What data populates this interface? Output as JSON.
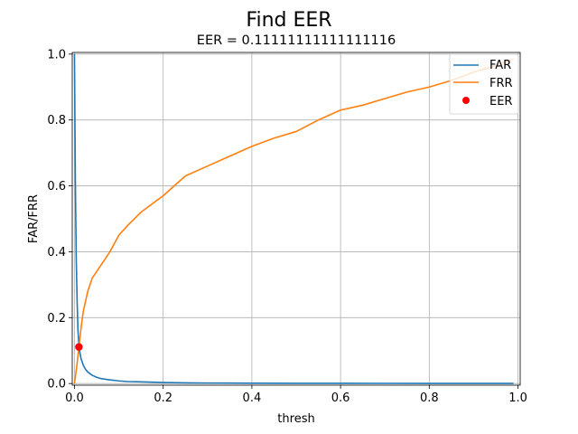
{
  "chart_data": {
    "type": "line",
    "suptitle": "Find EER",
    "title": "EER = 0.11111111111111116",
    "xlabel": "thresh",
    "ylabel": "FAR/FRR",
    "xlim": [
      -0.005,
      1.005
    ],
    "ylim": [
      -0.005,
      1.005
    ],
    "xticks": [
      0.0,
      0.2,
      0.4,
      0.6,
      0.8,
      1.0
    ],
    "xtick_labels": [
      "0.0",
      "0.2",
      "0.4",
      "0.6",
      "0.8",
      "1.0"
    ],
    "yticks": [
      0.0,
      0.2,
      0.4,
      0.6,
      0.8,
      1.0
    ],
    "ytick_labels": [
      "0.0",
      "0.2",
      "0.4",
      "0.6",
      "0.8",
      "1.0"
    ],
    "grid": true,
    "legend_position": "top-right",
    "series": [
      {
        "name": "FAR",
        "color": "#1f77b4",
        "x": [
          0.0,
          0.002,
          0.004,
          0.006,
          0.008,
          0.01,
          0.012,
          0.015,
          0.02,
          0.025,
          0.03,
          0.04,
          0.05,
          0.06,
          0.08,
          0.1,
          0.12,
          0.15,
          0.2,
          0.25,
          0.3,
          0.4,
          0.5,
          0.6,
          0.7,
          0.8,
          0.9,
          0.99
        ],
        "y": [
          1.0,
          0.62,
          0.38,
          0.25,
          0.16,
          0.115,
          0.095,
          0.075,
          0.055,
          0.043,
          0.035,
          0.025,
          0.019,
          0.015,
          0.011,
          0.008,
          0.006,
          0.005,
          0.003,
          0.002,
          0.0015,
          0.001,
          0.0008,
          0.0006,
          0.0005,
          0.0004,
          0.0003,
          0.0002
        ]
      },
      {
        "name": "FRR",
        "color": "#ff7f0e",
        "x": [
          0.0,
          0.005,
          0.01,
          0.015,
          0.02,
          0.03,
          0.04,
          0.05,
          0.06,
          0.08,
          0.1,
          0.12,
          0.15,
          0.18,
          0.2,
          0.25,
          0.3,
          0.35,
          0.4,
          0.45,
          0.5,
          0.55,
          0.6,
          0.65,
          0.7,
          0.75,
          0.8,
          0.85,
          0.9,
          0.95,
          0.99
        ],
        "y": [
          0.0,
          0.05,
          0.11,
          0.17,
          0.22,
          0.28,
          0.32,
          0.34,
          0.36,
          0.4,
          0.45,
          0.48,
          0.52,
          0.55,
          0.57,
          0.63,
          0.66,
          0.69,
          0.72,
          0.745,
          0.765,
          0.8,
          0.83,
          0.845,
          0.865,
          0.885,
          0.9,
          0.92,
          0.945,
          0.965,
          0.985
        ]
      }
    ],
    "points": [
      {
        "name": "EER",
        "color": "#ff0000",
        "x": 0.01,
        "y": 0.111
      }
    ]
  }
}
